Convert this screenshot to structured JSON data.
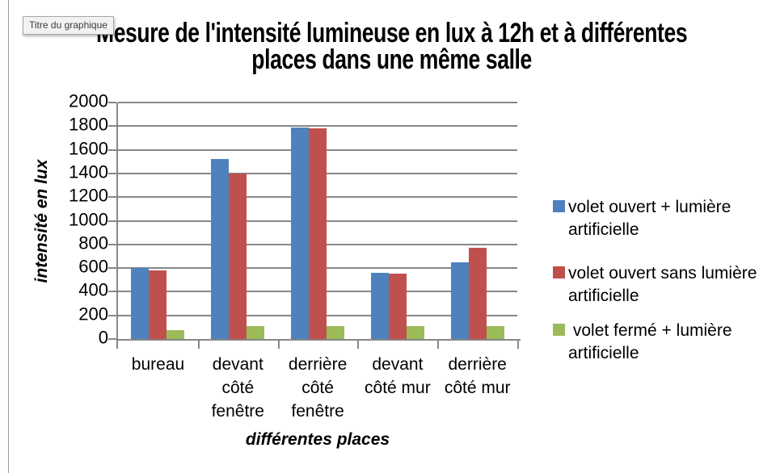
{
  "tooltip": {
    "text": "Titre du graphique"
  },
  "title_lines": {
    "line1": "Mesure de l'intensité lumineuse en lux à 12h et à différentes",
    "line2": "places dans une même salle"
  },
  "colors": {
    "grid": "#878787",
    "text": "#000000",
    "background": "#ffffff"
  },
  "chart_data": {
    "type": "bar",
    "title": "Mesure de l'intensité lumineuse en lux à 12h et à différentes places dans une même salle",
    "xlabel": "différentes places",
    "ylabel": "intensité en lux",
    "ylim": [
      0,
      2000
    ],
    "ytick_step": 200,
    "grid": true,
    "legend_position": "right",
    "categories": [
      "bureau",
      "devant côté fenêtre",
      "derrière côté fenêtre",
      "devant côté mur",
      "derrière côté mur"
    ],
    "category_slugs": [
      "bureau",
      "devant-cote-fenetre",
      "derriere-cote-fenetre",
      "devant-cote-mur",
      "derriere-cote-mur"
    ],
    "category_label_lines": [
      [
        "bureau"
      ],
      [
        "devant",
        "côté",
        "fenêtre"
      ],
      [
        "derrière",
        "côté",
        "fenêtre"
      ],
      [
        "devant",
        "côté mur"
      ],
      [
        "derrière",
        "côté mur"
      ]
    ],
    "series": [
      {
        "name": "volet ouvert + lumière artificielle",
        "slug": "volet-ouvert-plus-lumiere-artificielle",
        "legend_lines": "volet ouvert + lumière\nartificielle",
        "color": "#4F81BD",
        "values": [
          600,
          1520,
          1790,
          560,
          650
        ]
      },
      {
        "name": "volet ouvert sans lumière artificielle",
        "slug": "volet-ouvert-sans-lumiere-artificielle",
        "legend_lines": "volet ouvert sans lumière\nartificielle",
        "color": "#C0504D",
        "values": [
          580,
          1400,
          1780,
          550,
          770
        ]
      },
      {
        "name": "volet fermé + lumière artificielle",
        "slug": "volet-ferme-plus-lumiere-artificielle",
        "legend_lines": " volet fermé + lumière\nartificielle",
        "color": "#9BBB59",
        "values": [
          75,
          110,
          110,
          110,
          110
        ]
      }
    ]
  }
}
